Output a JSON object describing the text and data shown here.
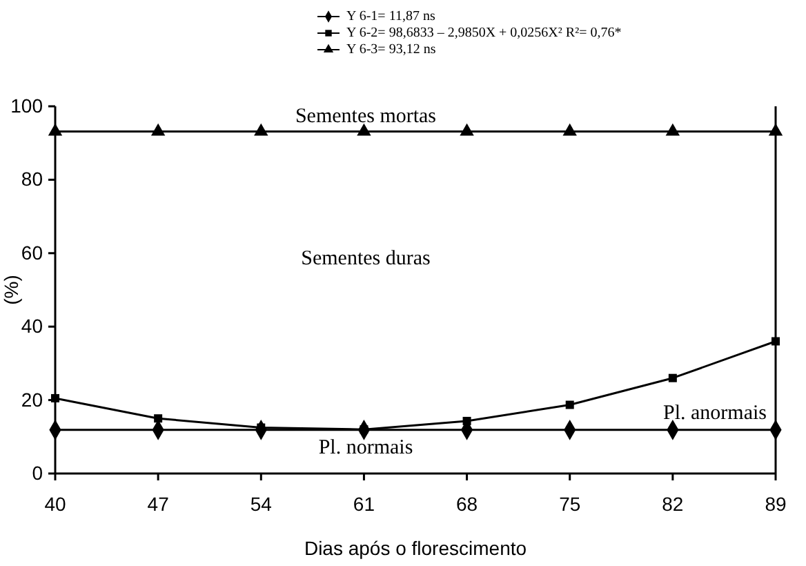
{
  "chart_data": {
    "type": "line",
    "xlabel": "Dias após o florescimento",
    "ylabel": "(%)",
    "x": [
      40,
      47,
      54,
      61,
      68,
      75,
      82,
      89
    ],
    "xlim": [
      40,
      89
    ],
    "xticks": [
      40,
      47,
      54,
      61,
      68,
      75,
      82,
      89
    ],
    "ylim": [
      0,
      100
    ],
    "yticks": [
      0,
      20,
      40,
      60,
      80,
      100
    ],
    "grid": false,
    "legend": "top",
    "series": [
      {
        "name": "Y 6-1= 11,87  ns",
        "color": "#000000",
        "marker": "diamond",
        "values": [
          11.87,
          11.87,
          11.87,
          11.87,
          11.87,
          11.87,
          11.87,
          11.87
        ]
      },
      {
        "name": "Y 6-2= 98,6833 – 2,9850X + 0,0256X²   R²= 0,76*",
        "color": "#000000",
        "marker": "square",
        "values": [
          20.5,
          15,
          12.5,
          12,
          14.3,
          18.7,
          26,
          36
        ]
      },
      {
        "name": "Y 6-3= 93,12  ns",
        "color": "#000000",
        "marker": "triangle",
        "values": [
          93.12,
          93.12,
          93.12,
          93.12,
          93.12,
          93.12,
          93.12,
          93.12
        ]
      }
    ],
    "annotations": [
      "Sementes mortas",
      "Sementes duras",
      "Pl. anormais",
      "Pl. normais"
    ]
  }
}
